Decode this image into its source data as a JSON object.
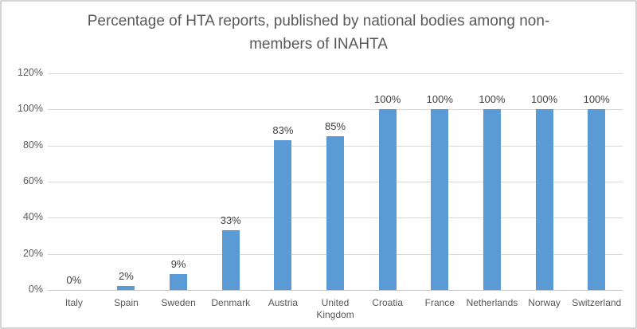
{
  "chart_data": {
    "type": "bar",
    "title": "Percentage of HTA reports, published by national bodies among non-members of INAHTA",
    "categories": [
      "Italy",
      "Spain",
      "Sweden",
      "Denmark",
      "Austria",
      "United Kingdom",
      "Croatia",
      "France",
      "Netherlands",
      "Norway",
      "Switzerland"
    ],
    "values": [
      0,
      2,
      9,
      33,
      83,
      85,
      100,
      100,
      100,
      100,
      100
    ],
    "value_labels": [
      "0%",
      "2%",
      "9%",
      "33%",
      "83%",
      "85%",
      "100%",
      "100%",
      "100%",
      "100%",
      "100%"
    ],
    "xlabel": "",
    "ylabel": "",
    "ylim": [
      0,
      120
    ],
    "ytick_step": 20,
    "ytick_labels": [
      "0%",
      "20%",
      "40%",
      "60%",
      "80%",
      "100%",
      "120%"
    ],
    "grid": true,
    "legend": false
  },
  "colors": {
    "bar": "#5B9BD5",
    "gridline": "#d9d9d9",
    "axis_line": "#c9c9c9",
    "title_text": "#595959",
    "tick_text": "#595959",
    "data_label_text": "#404040",
    "frame_border": "#d4d4d4"
  }
}
